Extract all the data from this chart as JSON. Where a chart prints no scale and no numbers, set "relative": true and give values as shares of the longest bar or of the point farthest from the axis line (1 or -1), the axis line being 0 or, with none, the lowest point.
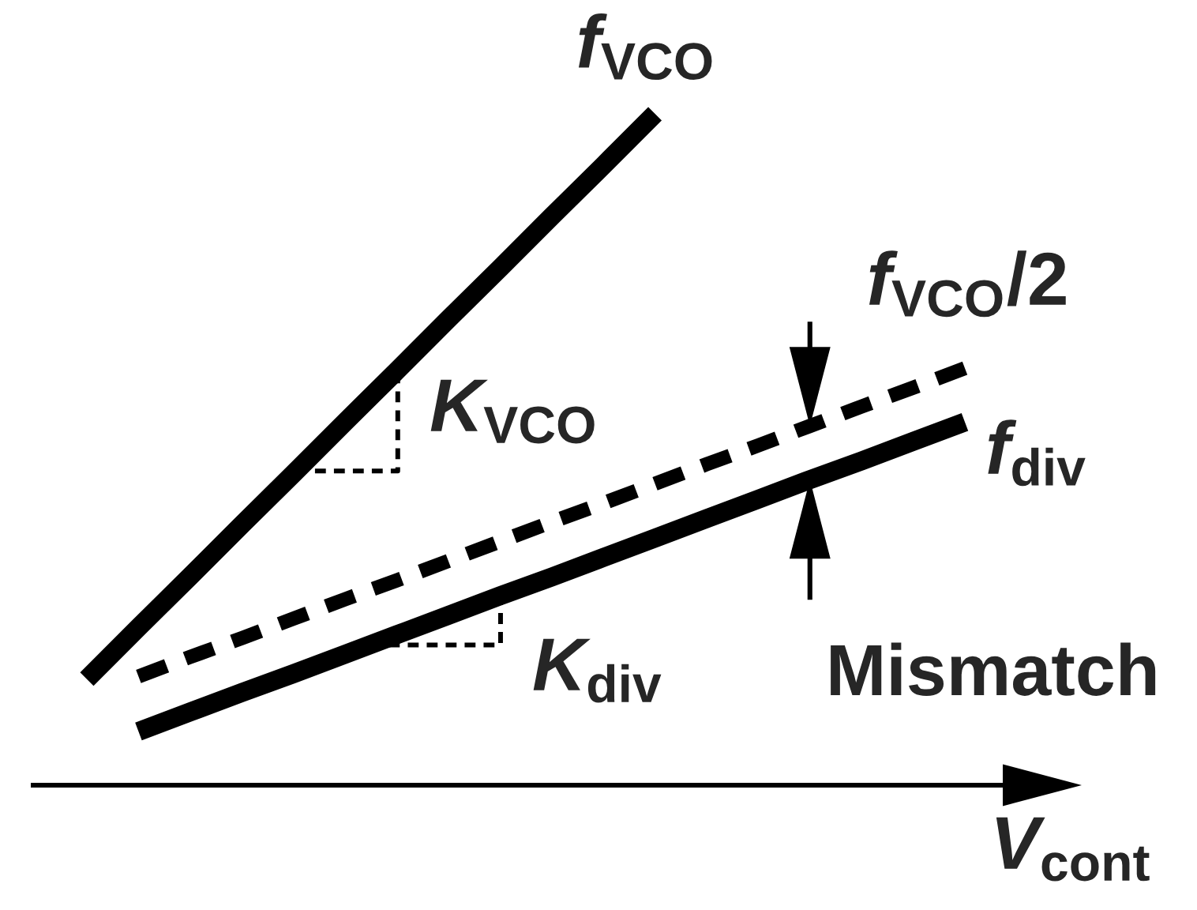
{
  "chart_data": {
    "type": "line",
    "relative": true,
    "xlabel": "V$_{cont}$",
    "line_style": "solid",
    "categories": [
      null,
      null,
      null,
      null,
      null,
      null,
      null,
      null,
      null,
      null,
      null,
      null,
      null,
      null,
      null,
      null,
      null,
      null
    ],
    "series": [
      {
        "name": "f$_{VCO}$",
        "color": "#000000",
        "values": [
          0.158,
          0.235,
          0.311,
          0.388,
          0.464,
          0.541,
          0.617,
          0.694,
          0.77,
          0.847,
          0.923,
          1.0,
          null,
          null,
          null,
          null,
          null,
          null
        ]
      },
      {
        "name": "f$_{VCO}$/2",
        "color": "#000000",
        "line_style": "dashed",
        "values": [
          null,
          0.162,
          0.191,
          0.219,
          0.248,
          0.277,
          0.305,
          0.334,
          0.363,
          0.392,
          0.42,
          0.449,
          0.478,
          0.506,
          0.535,
          0.564,
          0.592,
          0.621
        ]
      },
      {
        "name": "f$_{div}$",
        "color": "#000000",
        "values": [
          null,
          0.08,
          0.109,
          0.138,
          0.166,
          0.195,
          0.224,
          0.253,
          0.282,
          0.31,
          0.339,
          0.368,
          0.397,
          0.426,
          0.455,
          0.483,
          0.512,
          0.541
        ]
      }
    ],
    "annotations": [
      "K$_{VCO}$",
      "K$_{div}$",
      "Mismatch"
    ]
  }
}
